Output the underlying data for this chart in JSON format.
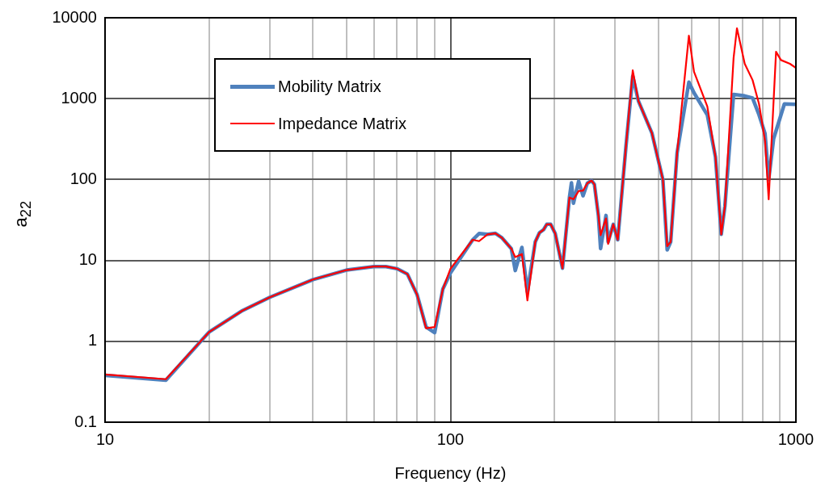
{
  "chart_data": {
    "type": "line",
    "xlabel": "Frequency (Hz)",
    "ylabel": "a$_{22}$",
    "log": "xy",
    "grid": true,
    "legend": "top left",
    "marker": "none",
    "line_style": "solid",
    "xlim": [
      10,
      1000
    ],
    "ylim": [
      0.1,
      10000
    ],
    "xticks": [
      10,
      {
        "value": 20,
        "label": null
      },
      {
        "value": 30,
        "label": null
      },
      {
        "value": 40,
        "label": null
      },
      {
        "value": 50,
        "label": null
      },
      {
        "value": 60,
        "label": null
      },
      {
        "value": 70,
        "label": null
      },
      {
        "value": 80,
        "label": null
      },
      {
        "value": 90,
        "label": null
      },
      100,
      {
        "value": 200,
        "label": null
      },
      {
        "value": 300,
        "label": null
      },
      {
        "value": 400,
        "label": null
      },
      {
        "value": 500,
        "label": null
      },
      {
        "value": 600,
        "label": null
      },
      {
        "value": 700,
        "label": null
      },
      {
        "value": 800,
        "label": null
      },
      {
        "value": 900,
        "label": null
      },
      1000
    ],
    "yticks": [
      0.1,
      1,
      10,
      100,
      1000,
      10000
    ],
    "series": [
      {
        "name": "Mobility Matrix",
        "color": "#4f81bd",
        "x": [
          10,
          15,
          20,
          25,
          30,
          40,
          50,
          60,
          65,
          70,
          75,
          80,
          85,
          90,
          95,
          100,
          116,
          121,
          128,
          135,
          141,
          150,
          154,
          161,
          167,
          176,
          181,
          186,
          190,
          195,
          201,
          211,
          221,
          224,
          227,
          235,
          242,
          249,
          256,
          261,
          268,
          272,
          282,
          286,
          296,
          305,
          322,
          337,
          350,
          383,
          412,
          424,
          434,
          453,
          490,
          507,
          554,
          585,
          608,
          623,
          660,
          711,
          749,
          782,
          814,
          834,
          862,
          926,
          1000
        ],
        "values": [
          0.38,
          0.33,
          1.3,
          2.4,
          3.5,
          5.8,
          7.6,
          8.4,
          8.4,
          7.9,
          6.8,
          3.8,
          1.5,
          1.28,
          4.4,
          7,
          18,
          21.5,
          21,
          21.6,
          19,
          14,
          7.5,
          14.5,
          4.1,
          17,
          22,
          24,
          28,
          28,
          21.5,
          8,
          60,
          91,
          51,
          95,
          63,
          90,
          97,
          87,
          36,
          14,
          36,
          17,
          28,
          18,
          253,
          1900,
          935,
          375,
          100,
          13.5,
          17,
          215,
          1600,
          1180,
          630,
          190,
          21,
          47,
          1130,
          1080,
          1020,
          630,
          370,
          100,
          320,
          860,
          850
        ]
      },
      {
        "name": "Impedance Matrix",
        "color": "#ff0000",
        "x": [
          10,
          15,
          20,
          25,
          30,
          40,
          50,
          60,
          65,
          70,
          75,
          80,
          85,
          90,
          95,
          100,
          116,
          121,
          128,
          135,
          141,
          150,
          154,
          161,
          167,
          176,
          181,
          186,
          190,
          195,
          201,
          211,
          221,
          227,
          235,
          242,
          249,
          256,
          261,
          268,
          272,
          282,
          286,
          296,
          305,
          322,
          337,
          350,
          383,
          412,
          424,
          434,
          453,
          490,
          507,
          554,
          585,
          608,
          623,
          660,
          675,
          711,
          749,
          782,
          814,
          834,
          876,
          905,
          961,
          1000
        ],
        "values": [
          0.39,
          0.34,
          1.3,
          2.4,
          3.5,
          5.8,
          7.6,
          8.4,
          8.4,
          7.9,
          6.8,
          3.8,
          1.45,
          1.5,
          4.4,
          7.9,
          18,
          17.3,
          21,
          21.6,
          19,
          14,
          11,
          12,
          3.2,
          17,
          22,
          24,
          28,
          28,
          21.5,
          8,
          60,
          57,
          72,
          73,
          90,
          97,
          87,
          36,
          20.5,
          33,
          16,
          28,
          18,
          253,
          2240,
          935,
          375,
          100,
          15,
          17,
          215,
          6000,
          2150,
          800,
          190,
          21,
          47,
          3170,
          7400,
          2700,
          1700,
          860,
          300,
          57,
          3800,
          3000,
          2700,
          2400
        ]
      }
    ]
  }
}
